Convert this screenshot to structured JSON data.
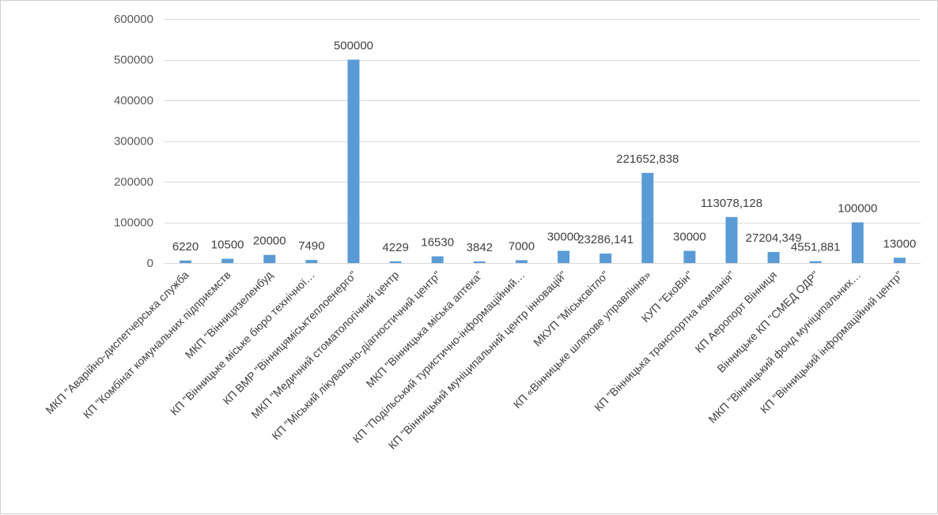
{
  "chart_data": {
    "type": "bar",
    "title": "",
    "xlabel": "",
    "ylabel": "",
    "ylim": [
      0,
      600000
    ],
    "yticks": [
      0,
      100000,
      200000,
      300000,
      400000,
      500000,
      600000
    ],
    "ytick_labels": [
      "0",
      "100000",
      "200000",
      "300000",
      "400000",
      "500000",
      "600000"
    ],
    "grid": "horizontal",
    "legend": "none",
    "bar_color": "#5B9BD5",
    "categories": [
      "МКП \"Аварійно-диспетчерська служба",
      "КП \"Комбінат комунальних підприємств",
      "МКП \"Вінницязеленбуд",
      "КП \"Вінницьке міське бюро технічної…",
      "КП ВМР \"Вінницяміськтеплоенерго\"",
      "МКП \"Медичний стоматологічний центр",
      "КП \"Міський лікувально-діагностичний центр\"",
      "МКП \"Вінницька міська аптека\"",
      "КП \"Подільський туристично-інформаційний…",
      "КП \"Вінницький муніципальний центр інновацій\"",
      "МКУП \"Міськсвітло\"",
      "КП «Вінницьке шляхове управління»",
      "КУП \"ЕкоВін\"",
      "КП \"Вінницька транспортна компанія\"",
      "КП Аеропорт Вінниця",
      "Вінницьке КП \"СМЕД ОДР\"",
      "МКП \"Вінницький фонд муніципальних…",
      "КП \"Вінницький інформаційний центр\""
    ],
    "values": [
      6220,
      10500,
      20000,
      7490,
      500000,
      4229,
      16530,
      3842,
      7000,
      30000,
      23286.141,
      221652.838,
      30000,
      113078.128,
      27204.349,
      4551.881,
      100000,
      13000
    ],
    "value_labels": [
      "6220",
      "10500",
      "20000",
      "7490",
      "500000",
      "4229",
      "16530",
      "3842",
      "7000",
      "30000",
      "23286,141",
      "221652,838",
      "30000",
      "113078,128",
      "27204,349",
      "4551,881",
      "100000",
      "13000"
    ]
  }
}
